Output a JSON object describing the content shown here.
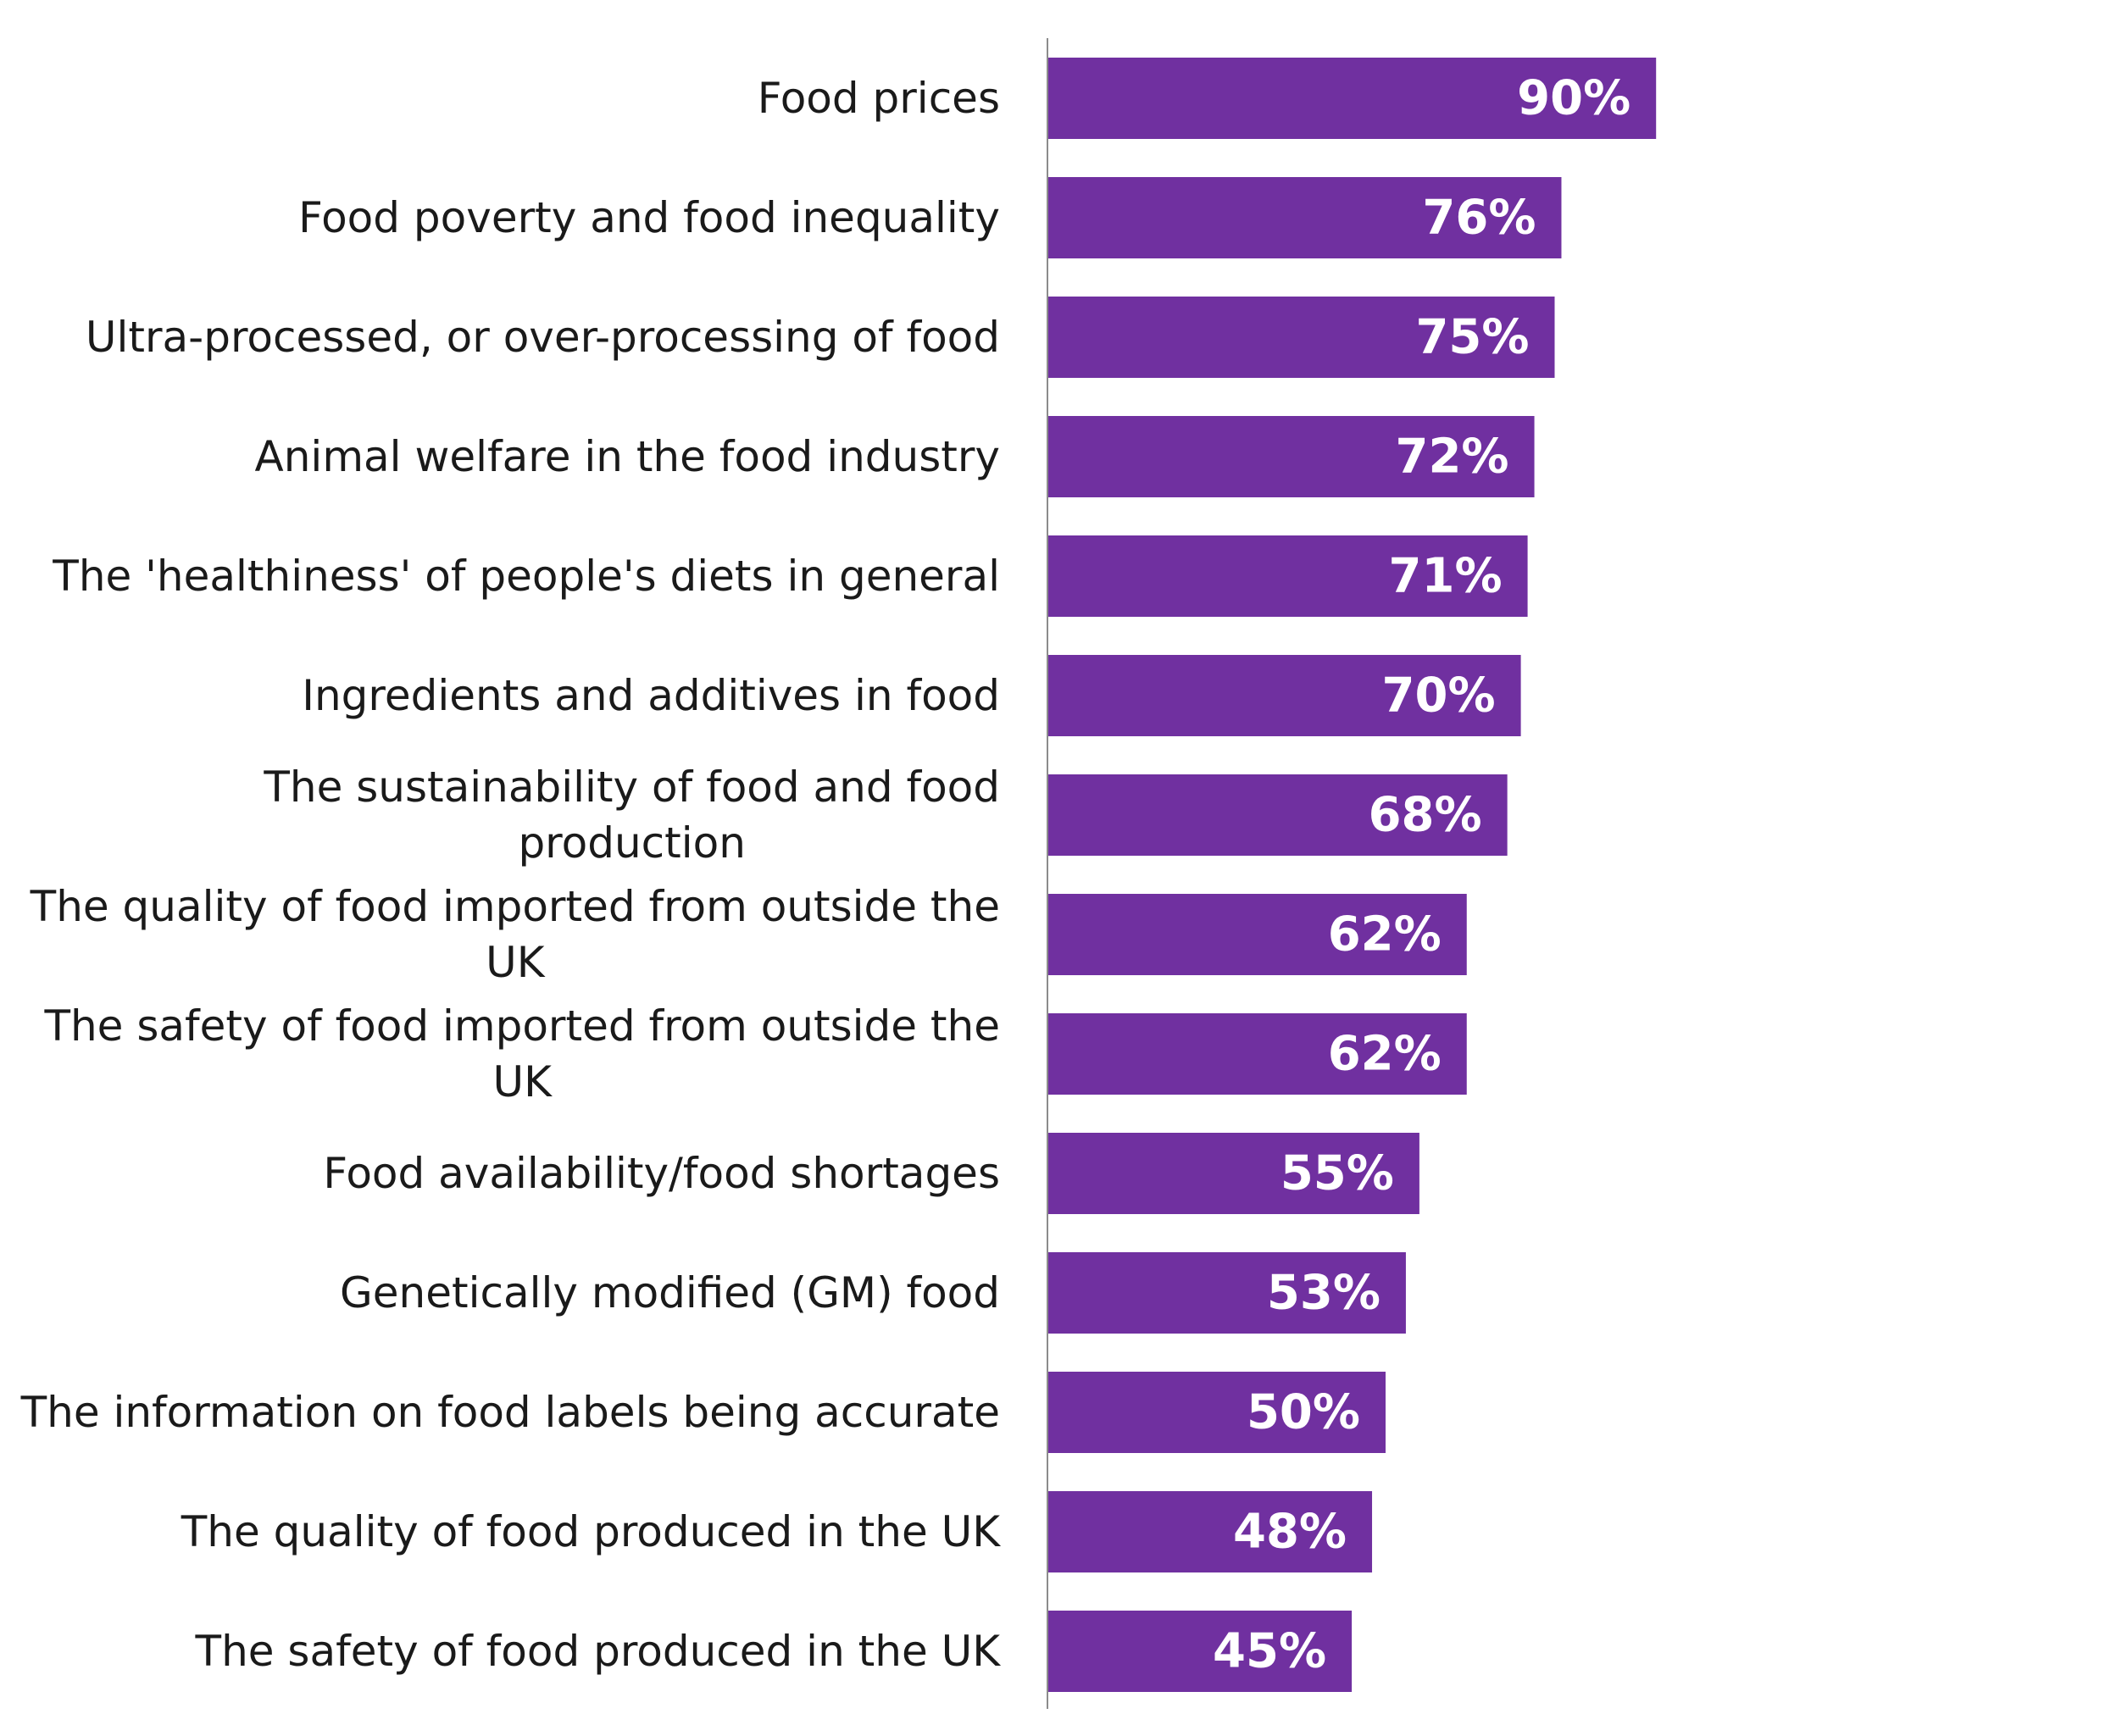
{
  "chart_data": {
    "type": "bar",
    "orientation": "horizontal",
    "categories": [
      "Food prices",
      "Food poverty and food inequality",
      "Ultra-processed, or over-processing of food",
      "Animal welfare in the food industry",
      "The 'healthiness' of people's diets in general",
      "Ingredients and additives in food",
      "The sustainability of food and food production",
      "The quality of food imported from outside the UK",
      "The safety of food imported from outside the UK",
      "Food availability/food shortages",
      "Genetically modified (GM) food",
      "The information on food labels being accurate",
      "The quality of food produced in the UK",
      "The safety of food produced in the UK"
    ],
    "category_lines": [
      [
        "Food prices"
      ],
      [
        "Food poverty and food inequality"
      ],
      [
        "Ultra-processed, or over-processing of food"
      ],
      [
        "Animal welfare in the food industry"
      ],
      [
        "The 'healthiness' of people's diets in general"
      ],
      [
        "Ingredients and additives in food"
      ],
      [
        "The sustainability of food and food",
        "production"
      ],
      [
        "The quality of food imported from outside the",
        "UK"
      ],
      [
        "The safety of food imported from outside the",
        "UK"
      ],
      [
        "Food availability/food shortages"
      ],
      [
        "Genetically modified (GM) food"
      ],
      [
        "The information on food labels being accurate"
      ],
      [
        "The quality of food produced in the UK"
      ],
      [
        "The safety of food produced in the UK"
      ]
    ],
    "values": [
      90,
      76,
      75,
      72,
      71,
      70,
      68,
      62,
      62,
      55,
      53,
      50,
      48,
      45
    ],
    "value_labels": [
      "90%",
      "76%",
      "75%",
      "72%",
      "71%",
      "70%",
      "68%",
      "62%",
      "62%",
      "55%",
      "53%",
      "50%",
      "48%",
      "45%"
    ],
    "xlim": [
      0,
      100
    ],
    "title": "",
    "xlabel": "",
    "ylabel": "",
    "grid": false,
    "legend": "none",
    "colors": {
      "bar": "#7030a0",
      "value_label": "#ffffff",
      "axis": "#8c8c8c",
      "category_label": "#1a1a1a"
    }
  }
}
